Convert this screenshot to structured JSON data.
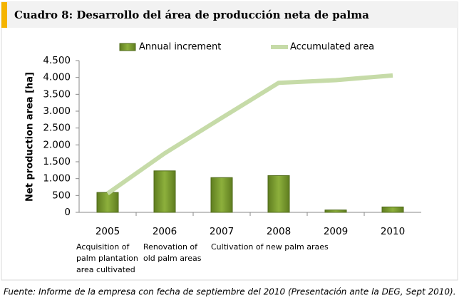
{
  "chart_data": {
    "type": "bar_line",
    "title": "Cuadro 8: Desarrollo del área de producción neta de palma",
    "ylabel": "Net production area [ha]",
    "categories": [
      "2005",
      "2006",
      "2007",
      "2008",
      "2009",
      "2010"
    ],
    "series": [
      {
        "name": "Annual increment",
        "type": "bar",
        "color": "#77992c",
        "values": [
          590,
          1230,
          1030,
          1090,
          70,
          160
        ]
      },
      {
        "name": "Accumulated area",
        "type": "line",
        "color": "#c6dba8",
        "values": [
          560,
          1750,
          2800,
          3840,
          3920,
          4060
        ]
      }
    ],
    "ylim": [
      0,
      4500
    ],
    "yticks": [
      0,
      500,
      {
        "value": 1000,
        "label": "1.000"
      },
      {
        "value": 1500,
        "label": "1.500"
      },
      {
        "value": 2000,
        "label": "2.000"
      },
      {
        "value": 2500,
        "label": "2.500"
      },
      {
        "value": 3000,
        "label": "3.000"
      },
      {
        "value": 3500,
        "label": "3.500"
      },
      {
        "value": 4000,
        "label": "4.000"
      },
      {
        "value": 4500,
        "label": "4.500"
      }
    ],
    "annotations": [
      {
        "category": "2005",
        "lines": [
          "Acquisition of",
          "palm plantation",
          "area cultivated"
        ]
      },
      {
        "category": "2006",
        "lines": [
          "Renovation of",
          "old palm areas"
        ]
      },
      {
        "category": "2007",
        "lines": [
          "Cultivation of new palm araes"
        ]
      }
    ],
    "source": "Fuente: Informe de la empresa con fecha de septiembre del 2010 (Presentación ante la DEG, Sept 2010)."
  }
}
